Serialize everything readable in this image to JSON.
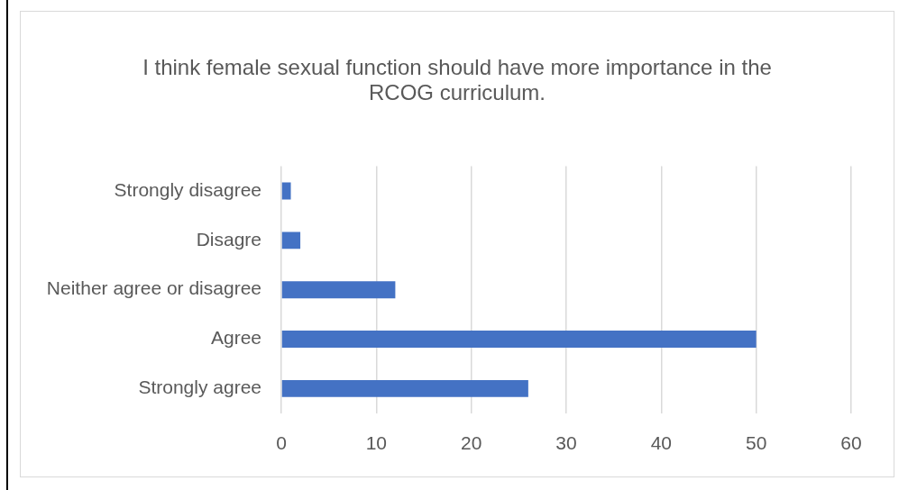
{
  "chart_data": {
    "type": "bar",
    "orientation": "horizontal",
    "title": "I think female sexual function should have more importance in the RCOG curriculum.",
    "categories": [
      "Strongly disagree",
      "Disagre",
      "Neither agree or disagree",
      "Agree",
      "Strongly agree"
    ],
    "values": [
      1,
      2,
      12,
      50,
      26
    ],
    "color": "#4472c4",
    "xlim": [
      0,
      60
    ],
    "xticks": [
      0,
      10,
      20,
      30,
      40,
      50,
      60
    ],
    "grid": "x",
    "legend": false
  }
}
